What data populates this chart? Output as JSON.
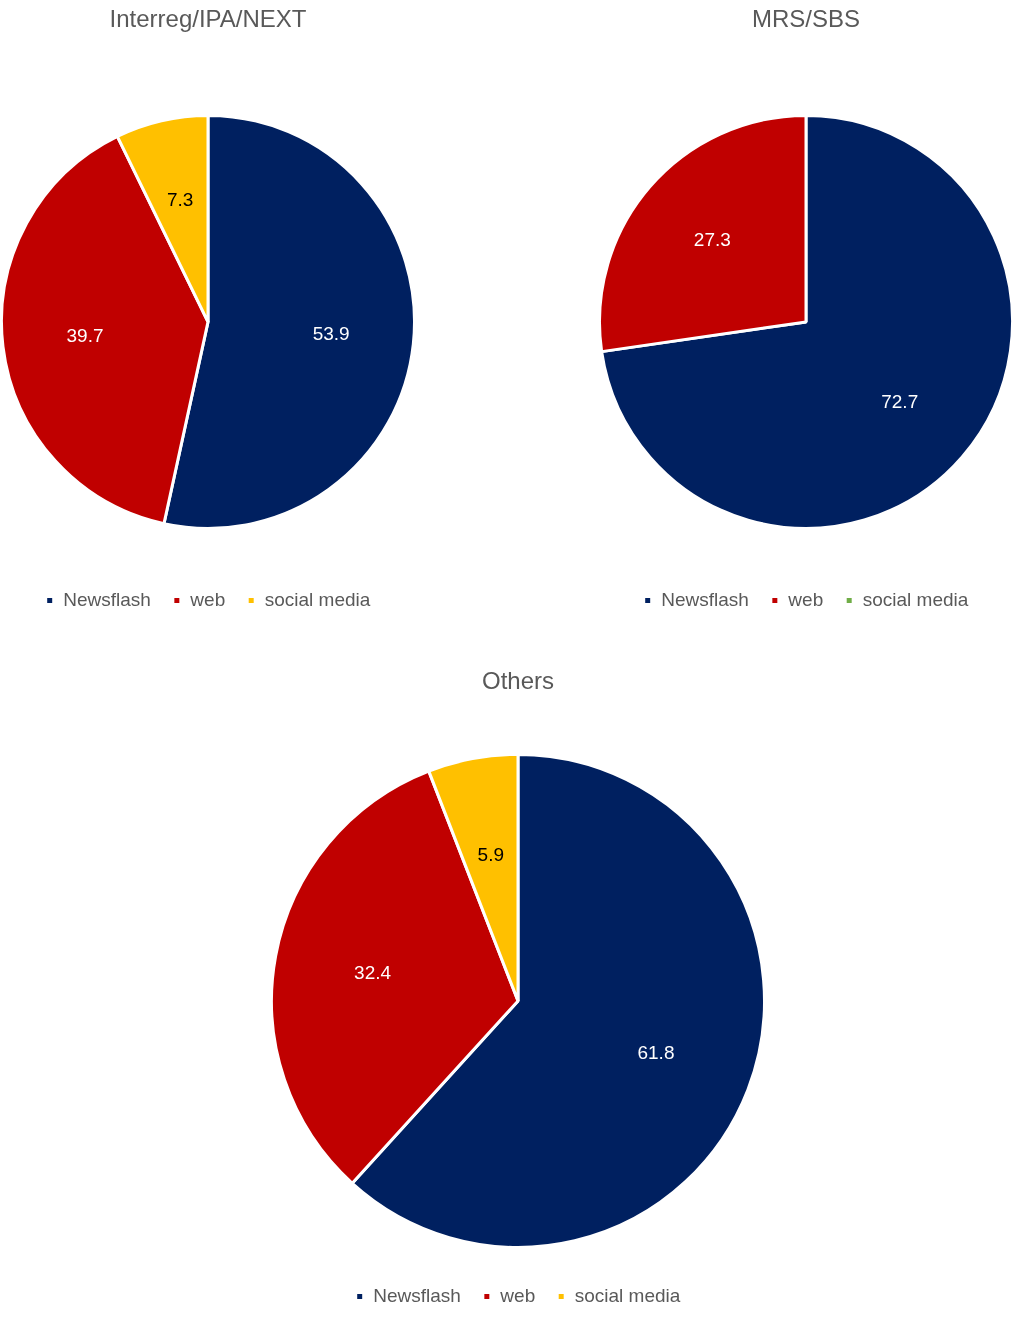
{
  "chart_data": [
    {
      "type": "pie",
      "title": "Interreg/IPA/NEXT",
      "categories": [
        "Newsflash",
        "web",
        "social media"
      ],
      "values": [
        53.9,
        39.7,
        7.3
      ],
      "colors": [
        "#002060",
        "#c00000",
        "#ffc000"
      ],
      "data_labels": true,
      "legend": "bottom"
    },
    {
      "type": "pie",
      "title": "MRS/SBS",
      "categories": [
        "Newsflash",
        "web",
        "social media"
      ],
      "values": [
        72.7,
        27.3,
        0
      ],
      "colors": [
        "#002060",
        "#c00000",
        "#70ad47"
      ],
      "value_labels": [
        "72.7",
        "27.3",
        null
      ],
      "legend": "bottom"
    },
    {
      "type": "pie",
      "title": "Others",
      "categories": [
        "Newsflash",
        "web",
        "social media"
      ],
      "values": [
        61.8,
        32.4,
        5.9
      ],
      "colors": [
        "#002060",
        "#c00000",
        "#ffc000"
      ],
      "data_labels": true,
      "legend": "bottom"
    }
  ]
}
